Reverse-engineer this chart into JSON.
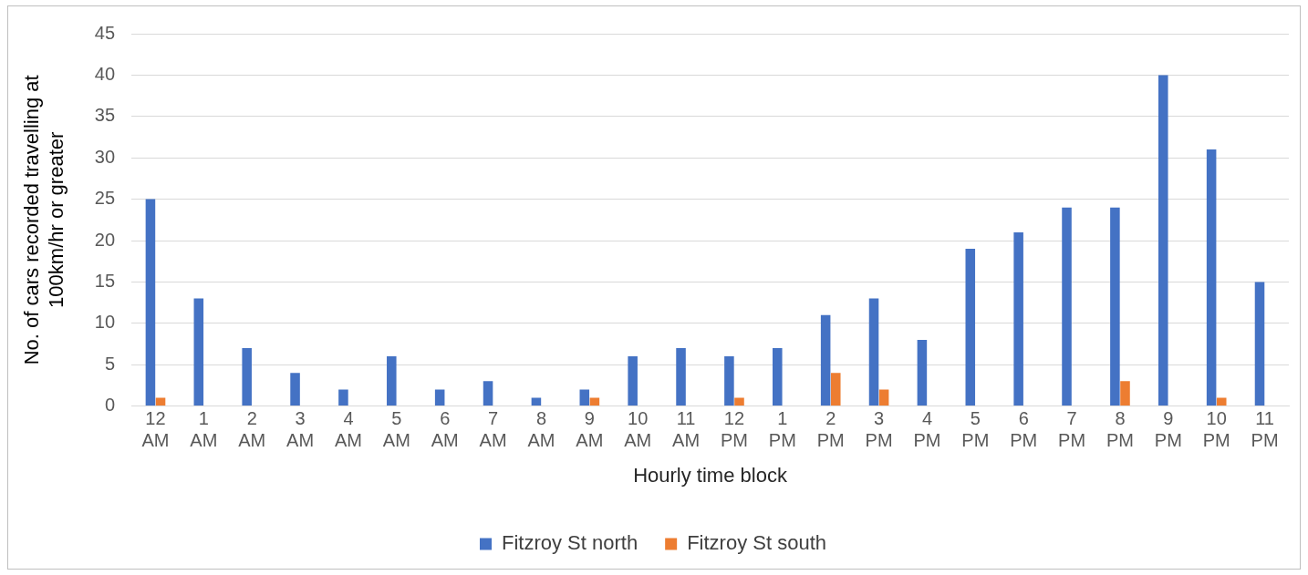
{
  "chart_data": {
    "type": "bar",
    "xlabel": "Hourly time block",
    "ylabel": "No. of cars recorded travelling at 100km/hr or greater",
    "categories": [
      "12 AM",
      "1 AM",
      "2 AM",
      "3 AM",
      "4 AM",
      "5 AM",
      "6 AM",
      "7 AM",
      "8 AM",
      "9 AM",
      "10 AM",
      "11 AM",
      "12 PM",
      "1 PM",
      "2 PM",
      "3 PM",
      "4 PM",
      "5 PM",
      "6 PM",
      "7 PM",
      "8 PM",
      "9 PM",
      "10 PM",
      "11 PM"
    ],
    "series": [
      {
        "name": "Fitzroy St north",
        "color": "#4472c4",
        "values": [
          25,
          13,
          7,
          4,
          2,
          6,
          2,
          3,
          1,
          2,
          6,
          7,
          6,
          7,
          11,
          13,
          8,
          19,
          21,
          24,
          24,
          40,
          31,
          15
        ]
      },
      {
        "name": "Fitzroy St south",
        "color": "#ed7d31",
        "values": [
          1,
          0,
          0,
          0,
          0,
          0,
          0,
          0,
          0,
          1,
          0,
          0,
          1,
          0,
          4,
          2,
          0,
          0,
          0,
          0,
          3,
          0,
          1,
          0
        ]
      }
    ],
    "ylim": [
      0,
      45
    ],
    "yticks": [
      0,
      5,
      10,
      15,
      20,
      25,
      30,
      35,
      40,
      45
    ],
    "grid": "y",
    "legend": "bottom"
  }
}
